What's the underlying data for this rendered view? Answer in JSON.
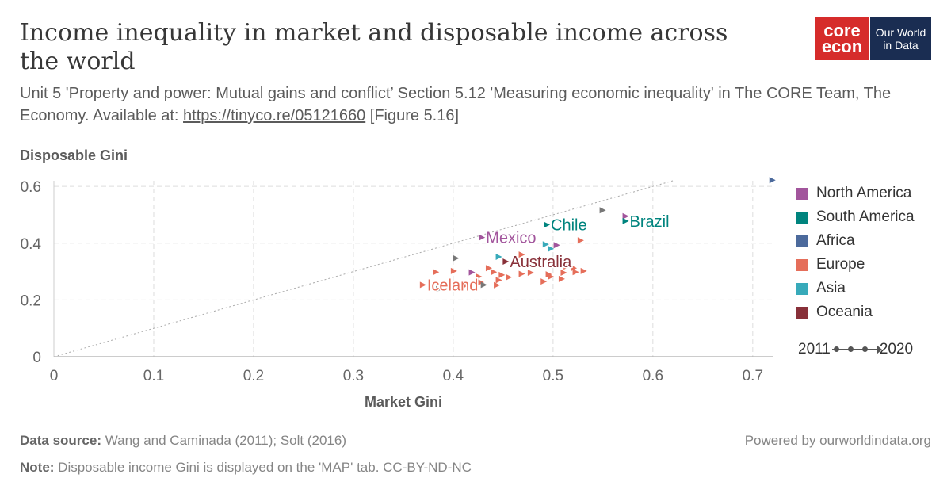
{
  "header": {
    "title": "Income inequality in market and disposable income across the world",
    "subtitle_pre": "Unit 5 'Property and power: Mutual gains and conflict’ Section 5.12 'Measuring economic inequality' in The CORE Team, The Economy. Available at: ",
    "subtitle_link": "https://tinyco.re/05121660",
    "subtitle_post": " [Figure 5.16]",
    "logo_core_1": "core",
    "logo_core_2": "econ",
    "logo_owid_1": "Our World",
    "logo_owid_2": "in Data"
  },
  "footer": {
    "source_label": "Data source:",
    "source_text": " Wang and Caminada (2011); Solt (2016)",
    "note_label": "Note:",
    "note_text": " Disposable income Gini is displayed on the 'MAP' tab. CC-BY-ND-NC",
    "powered": "Powered by ourworldindata.org"
  },
  "timeline": {
    "start": "2011",
    "end": "2020"
  },
  "chart_data": {
    "type": "scatter",
    "xlabel": "Market Gini",
    "ylabel": "Disposable Gini",
    "xlim": [
      0,
      0.72
    ],
    "ylim": [
      0,
      0.62
    ],
    "x_ticks": [
      0,
      0.1,
      0.2,
      0.3,
      0.4,
      0.5,
      0.6,
      0.7
    ],
    "x_tick_labels": [
      "0",
      "0.1",
      "0.2",
      "0.3",
      "0.4",
      "0.5",
      "0.6",
      "0.7"
    ],
    "y_ticks": [
      0,
      0.2,
      0.4,
      0.6
    ],
    "y_tick_labels": [
      "0",
      "0.2",
      "0.4",
      "0.6"
    ],
    "grid": true,
    "diagonal_reference_line": true,
    "legend_position": "right",
    "colors": {
      "North America": "#a2559c",
      "South America": "#00847e",
      "Africa": "#4c6a9c",
      "Europe": "#e56e5a",
      "Asia": "#38aaba",
      "Oceania": "#883039",
      "Other": "#777777"
    },
    "series": [
      {
        "name": "North America",
        "points": [
          [
            0.428,
            0.42
          ],
          [
            0.503,
            0.393
          ],
          [
            0.572,
            0.495
          ],
          [
            0.418,
            0.297
          ]
        ]
      },
      {
        "name": "South America",
        "points": [
          [
            0.493,
            0.465
          ],
          [
            0.572,
            0.478
          ]
        ]
      },
      {
        "name": "Africa",
        "points": [
          [
            0.719,
            0.622
          ]
        ]
      },
      {
        "name": "Europe",
        "points": [
          [
            0.369,
            0.253
          ],
          [
            0.382,
            0.298
          ],
          [
            0.4,
            0.302
          ],
          [
            0.425,
            0.282
          ],
          [
            0.427,
            0.262
          ],
          [
            0.435,
            0.312
          ],
          [
            0.44,
            0.298
          ],
          [
            0.445,
            0.27
          ],
          [
            0.448,
            0.288
          ],
          [
            0.455,
            0.28
          ],
          [
            0.443,
            0.252
          ],
          [
            0.468,
            0.292
          ],
          [
            0.477,
            0.296
          ],
          [
            0.49,
            0.265
          ],
          [
            0.495,
            0.29
          ],
          [
            0.497,
            0.282
          ],
          [
            0.508,
            0.274
          ],
          [
            0.51,
            0.296
          ],
          [
            0.513,
            0.318
          ],
          [
            0.52,
            0.312
          ],
          [
            0.522,
            0.298
          ],
          [
            0.53,
            0.302
          ],
          [
            0.527,
            0.41
          ],
          [
            0.468,
            0.36
          ],
          [
            0.412,
            0.252
          ]
        ]
      },
      {
        "name": "Asia",
        "points": [
          [
            0.445,
            0.352
          ],
          [
            0.492,
            0.396
          ],
          [
            0.497,
            0.38
          ]
        ]
      },
      {
        "name": "Oceania",
        "points": [
          [
            0.452,
            0.335
          ]
        ]
      },
      {
        "name": "Other",
        "points": [
          [
            0.549,
            0.516
          ],
          [
            0.402,
            0.347
          ],
          [
            0.385,
            0.238
          ],
          [
            0.43,
            0.253
          ]
        ]
      }
    ],
    "annotations": [
      {
        "text": "Mexico",
        "x": 0.428,
        "y": 0.42,
        "series": "North America"
      },
      {
        "text": "Chile",
        "x": 0.493,
        "y": 0.465,
        "series": "South America"
      },
      {
        "text": "Brazil",
        "x": 0.572,
        "y": 0.478,
        "series": "South America"
      },
      {
        "text": "Australia",
        "x": 0.452,
        "y": 0.335,
        "series": "Oceania"
      },
      {
        "text": "Iceland",
        "x": 0.369,
        "y": 0.253,
        "series": "Europe"
      }
    ],
    "legend": [
      "North America",
      "South America",
      "Africa",
      "Europe",
      "Asia",
      "Oceania"
    ]
  }
}
